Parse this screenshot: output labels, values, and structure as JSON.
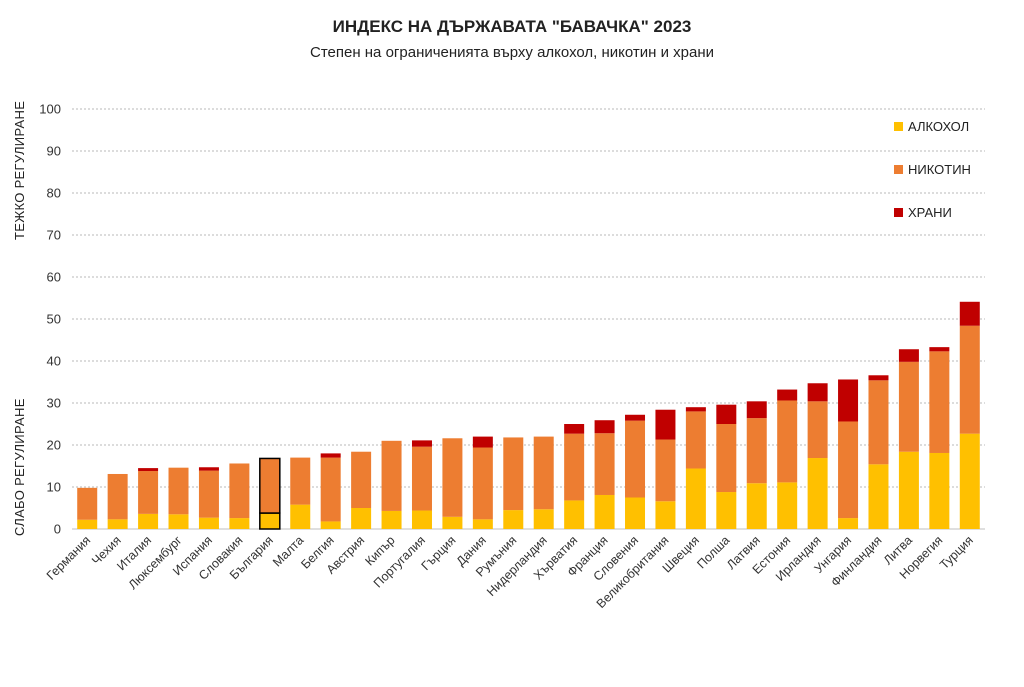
{
  "chart_data": {
    "type": "bar",
    "stacked": true,
    "title": "ИНДЕКС НА ДЪРЖАВАТА \"БАВАЧКА\" 2023",
    "subtitle": "Степен на ограниченията върху алкохол, никотин и храни",
    "ylabel_low": "СЛАБО РЕГУЛИРАНЕ",
    "ylabel_high": "ТЕЖКО РЕГУЛИРАНЕ",
    "ylim": [
      0,
      100
    ],
    "yticks": [
      "0",
      "10",
      "20",
      "30",
      "40",
      "50",
      "60",
      "70",
      "80",
      "90",
      "100"
    ],
    "grid": true,
    "legend_position": "top-right",
    "highlight_category": "България",
    "categories": [
      "Германия",
      "Чехия",
      "Италия",
      "Люксембург",
      "Испания",
      "Словакия",
      "България",
      "Малта",
      "Белгия",
      "Австрия",
      "Кипър",
      "Португалия",
      "Гърция",
      "Дания",
      "Румъния",
      "Нидерландия",
      "Хърватия",
      "Франция",
      "Словения",
      "Великобритания",
      "Швеция",
      "Полша",
      "Латвия",
      "Естония",
      "Ирландия",
      "Унгария",
      "Финландия",
      "Литва",
      "Норвегия",
      "Турция"
    ],
    "series": [
      {
        "name": "АЛКОХОЛ",
        "color": "#FFC000",
        "values": [
          2.2,
          2.3,
          3.6,
          3.5,
          2.7,
          2.6,
          3.8,
          5.8,
          1.8,
          5.0,
          4.3,
          4.4,
          2.9,
          2.3,
          4.5,
          4.7,
          6.8,
          8.1,
          7.5,
          6.6,
          14.4,
          8.8,
          10.9,
          11.1,
          16.9,
          2.6,
          15.4,
          18.4,
          18.1,
          22.7
        ]
      },
      {
        "name": "НИКОТИН",
        "color": "#ED7D31",
        "values": [
          7.6,
          10.8,
          10.2,
          11.1,
          11.2,
          13.0,
          13.0,
          11.2,
          15.2,
          13.4,
          16.7,
          15.2,
          18.7,
          17.1,
          17.3,
          17.3,
          15.9,
          14.7,
          18.3,
          14.7,
          13.6,
          16.2,
          15.5,
          19.5,
          13.5,
          23.0,
          20.0,
          21.4,
          24.2,
          25.7
        ]
      },
      {
        "name": "ХРАНИ",
        "color": "#C00000",
        "values": [
          0.0,
          0.0,
          0.7,
          0.0,
          0.8,
          0.0,
          0.0,
          0.0,
          1.0,
          0.0,
          0.0,
          1.5,
          0.0,
          2.6,
          0.0,
          0.0,
          2.3,
          3.1,
          1.4,
          7.1,
          1.0,
          4.6,
          4.0,
          2.6,
          4.3,
          10.0,
          1.2,
          3.0,
          1.0,
          5.7
        ]
      }
    ]
  }
}
